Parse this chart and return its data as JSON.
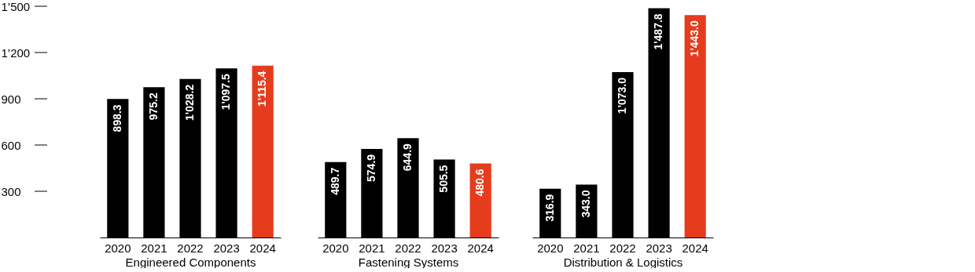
{
  "chart_data": [
    {
      "type": "bar",
      "xlabel": "Engineered Components",
      "categories": [
        "2020",
        "2021",
        "2022",
        "2023",
        "2024"
      ],
      "values": [
        898.3,
        975.2,
        1028.2,
        1097.5,
        1115.4
      ],
      "colors": [
        "#000000",
        "#000000",
        "#000000",
        "#000000",
        "#e63c1e"
      ],
      "value_labels": [
        "898.3",
        "975.2",
        "1'028.2",
        "1'097.5",
        "1'115.4"
      ],
      "ylim": [
        0,
        1500
      ],
      "yticks": [
        {
          "value": 300,
          "label": "300"
        },
        {
          "value": 600,
          "label": "600"
        },
        {
          "value": 900,
          "label": "900"
        },
        {
          "value": 1200,
          "label": "1’200"
        },
        {
          "value": 1500,
          "label": "1’500"
        }
      ]
    },
    {
      "type": "bar",
      "xlabel": "Fastening Systems",
      "categories": [
        "2020",
        "2021",
        "2022",
        "2023",
        "2024"
      ],
      "values": [
        489.7,
        574.9,
        644.9,
        505.5,
        480.6
      ],
      "colors": [
        "#000000",
        "#000000",
        "#000000",
        "#000000",
        "#e63c1e"
      ],
      "value_labels": [
        "489.7",
        "574.9",
        "644.9",
        "505.5",
        "480.6"
      ],
      "ylim": [
        0,
        1500
      ],
      "tick_labels": "x"
    },
    {
      "type": "bar",
      "xlabel": "Distribution & Logistics",
      "categories": [
        "2020",
        "2021",
        "2022",
        "2023",
        "2024"
      ],
      "values": [
        316.9,
        343.0,
        1073.0,
        1487.8,
        1443.0
      ],
      "colors": [
        "#000000",
        "#000000",
        "#000000",
        "#000000",
        "#e63c1e"
      ],
      "value_labels": [
        "316.9",
        "343.0",
        "1'073.0",
        "1'487.8",
        "1'443.0"
      ],
      "ylim": [
        0,
        1500
      ],
      "tick_labels": "x"
    }
  ]
}
